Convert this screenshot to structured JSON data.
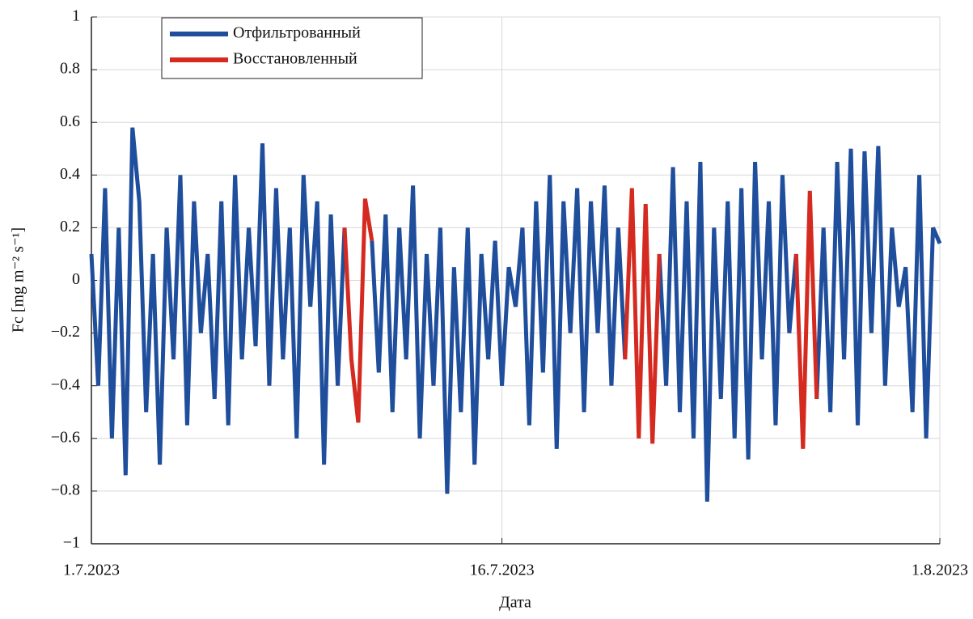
{
  "chart_data": {
    "type": "line",
    "xlabel": "Дата",
    "ylabel": "Fc [mg m⁻² s⁻¹]",
    "x": [
      0,
      0.25,
      0.5,
      0.75,
      1,
      1.25,
      1.5,
      1.75,
      2,
      2.25,
      2.5,
      2.75,
      3,
      3.25,
      3.5,
      3.75,
      4,
      4.25,
      4.5,
      4.75,
      5,
      5.25,
      5.5,
      5.75,
      6,
      6.25,
      6.5,
      6.75,
      7,
      7.25,
      7.5,
      7.75,
      8,
      8.25,
      8.5,
      8.75,
      9,
      9.25,
      9.5,
      9.75,
      10,
      10.25,
      10.5,
      10.75,
      11,
      11.25,
      11.5,
      11.75,
      12,
      12.25,
      12.5,
      12.75,
      13,
      13.25,
      13.5,
      13.75,
      14,
      14.25,
      14.5,
      14.75,
      15,
      15.25,
      15.5,
      15.75,
      16,
      16.25,
      16.5,
      16.75,
      17,
      17.25,
      17.5,
      17.75,
      18,
      18.25,
      18.5,
      18.75,
      19,
      19.25,
      19.5,
      19.75,
      20,
      20.25,
      20.5,
      20.75,
      21,
      21.25,
      21.5,
      21.75,
      22,
      22.25,
      22.5,
      22.75,
      23,
      23.25,
      23.5,
      23.75,
      24,
      24.25,
      24.5,
      24.75,
      25,
      25.25,
      25.5,
      25.75,
      26,
      26.25,
      26.5,
      26.75,
      27,
      27.25,
      27.5,
      27.75,
      28,
      28.25,
      28.5,
      28.75,
      29,
      29.25,
      29.5,
      29.75,
      30,
      30.25,
      30.5,
      30.75,
      31
    ],
    "series": [
      {
        "name": "Отфильтрованный",
        "color": "#1f4e9c",
        "values": [
          0.1,
          -0.4,
          0.35,
          -0.6,
          0.2,
          -0.74,
          0.58,
          0.3,
          -0.5,
          0.1,
          -0.7,
          0.2,
          -0.3,
          0.4,
          -0.55,
          0.3,
          -0.2,
          0.1,
          -0.45,
          0.3,
          -0.55,
          0.4,
          -0.3,
          0.2,
          -0.25,
          0.52,
          -0.4,
          0.35,
          -0.3,
          0.2,
          -0.6,
          0.4,
          -0.1,
          0.3,
          -0.7,
          0.25,
          -0.4,
          0.2,
          null,
          null,
          null,
          0.15,
          -0.35,
          0.25,
          -0.5,
          0.2,
          -0.3,
          0.36,
          -0.6,
          0.1,
          -0.4,
          0.2,
          -0.81,
          0.05,
          -0.5,
          0.2,
          -0.7,
          0.1,
          -0.3,
          0.15,
          -0.4,
          0.05,
          -0.1,
          0.2,
          -0.55,
          0.3,
          -0.35,
          0.4,
          -0.64,
          0.3,
          -0.2,
          0.35,
          -0.5,
          0.3,
          -0.2,
          0.36,
          -0.4,
          0.2,
          -0.3,
          null,
          null,
          null,
          null,
          0.1,
          -0.4,
          0.43,
          -0.5,
          0.3,
          -0.6,
          0.45,
          -0.84,
          0.2,
          -0.45,
          0.3,
          -0.6,
          0.35,
          -0.68,
          0.45,
          -0.3,
          0.3,
          -0.55,
          0.4,
          -0.2,
          0.1,
          null,
          null,
          -0.45,
          0.2,
          -0.5,
          0.45,
          -0.3,
          0.5,
          -0.55,
          0.49,
          -0.2,
          0.51,
          -0.4,
          0.2,
          -0.1,
          0.05,
          -0.5,
          0.4,
          -0.6,
          0.2,
          0.14
        ]
      },
      {
        "name": "Восстановленный",
        "color": "#d42a20",
        "values": [
          null,
          null,
          null,
          null,
          null,
          null,
          null,
          null,
          null,
          null,
          null,
          null,
          null,
          null,
          null,
          null,
          null,
          null,
          null,
          null,
          null,
          null,
          null,
          null,
          null,
          null,
          null,
          null,
          null,
          null,
          null,
          null,
          null,
          null,
          null,
          null,
          null,
          0.2,
          -0.3,
          -0.54,
          0.31,
          0.15,
          null,
          null,
          null,
          null,
          null,
          null,
          null,
          null,
          null,
          null,
          null,
          null,
          null,
          null,
          null,
          null,
          null,
          null,
          null,
          null,
          null,
          null,
          null,
          null,
          null,
          null,
          null,
          null,
          null,
          null,
          null,
          null,
          null,
          null,
          null,
          null,
          -0.3,
          0.35,
          -0.6,
          0.29,
          -0.62,
          0.1,
          null,
          null,
          null,
          null,
          null,
          null,
          null,
          null,
          null,
          null,
          null,
          null,
          null,
          null,
          null,
          null,
          null,
          null,
          null,
          0.1,
          -0.64,
          0.34,
          -0.45,
          null,
          null,
          null,
          null,
          null,
          null,
          null,
          null,
          null,
          null,
          null,
          null,
          null,
          null,
          null,
          null,
          null,
          null
        ]
      }
    ],
    "xlim": [
      0,
      31
    ],
    "xticks": [
      {
        "value": 0,
        "label": "1.7.2023"
      },
      {
        "value": 15,
        "label": "16.7.2023"
      },
      {
        "value": 31,
        "label": "1.8.2023"
      }
    ],
    "ylim": [
      -1,
      1
    ],
    "yticks": [
      {
        "value": -1,
        "label": "−1"
      },
      {
        "value": -0.8,
        "label": "−0.8"
      },
      {
        "value": -0.6,
        "label": "−0.6"
      },
      {
        "value": -0.4,
        "label": "−0.4"
      },
      {
        "value": -0.2,
        "label": "−0.2"
      },
      0,
      0.2,
      0.4,
      0.6,
      0.8,
      1
    ],
    "grid": true,
    "legend": "upper-left"
  }
}
